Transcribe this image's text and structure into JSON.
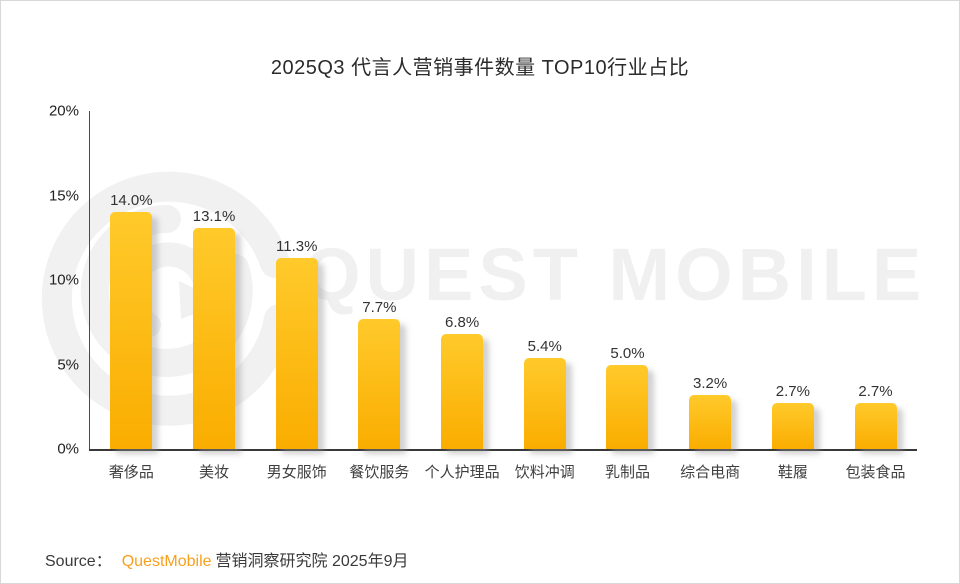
{
  "title": "2025Q3 代言人营销事件数量 TOP10行业占比",
  "watermark": {
    "text": "QUEST MOBILE",
    "logo": "questmobile-swirl-logo"
  },
  "source": {
    "prefix": "Source：",
    "brand": "QuestMobile",
    "suffix": "营销洞察研究院 2025年9月",
    "brand_color": "#F9A01B"
  },
  "colors": {
    "bar_gradient_top": "#FFCA2B",
    "bar_gradient_bottom": "#FAAD00",
    "axis": "#4a4a4a",
    "label_text": "#333333",
    "watermark": "#f0f0f0"
  },
  "chart_data": {
    "type": "bar",
    "title": "2025Q3 代言人营销事件数量 TOP10行业占比",
    "categories": [
      "奢侈品",
      "美妆",
      "男女服饰",
      "餐饮服务",
      "个人护理品",
      "饮料冲调",
      "乳制品",
      "综合电商",
      "鞋履",
      "包装食品"
    ],
    "values": [
      14.0,
      13.1,
      11.3,
      7.7,
      6.8,
      5.4,
      5.0,
      3.2,
      2.7,
      2.7
    ],
    "value_labels": [
      "14.0%",
      "13.1%",
      "11.3%",
      "7.7%",
      "6.8%",
      "5.4%",
      "5.0%",
      "3.2%",
      "2.7%",
      "2.7%"
    ],
    "xlabel": "",
    "ylabel": "",
    "ylim": [
      0,
      20
    ],
    "y_ticks": [
      {
        "value": 0,
        "label": "0%"
      },
      {
        "value": 5,
        "label": "5%"
      },
      {
        "value": 10,
        "label": "10%"
      },
      {
        "value": 15,
        "label": "15%"
      },
      {
        "value": 20,
        "label": "20%"
      }
    ],
    "grid": false,
    "legend": null,
    "bar_color": "#FFC112"
  }
}
